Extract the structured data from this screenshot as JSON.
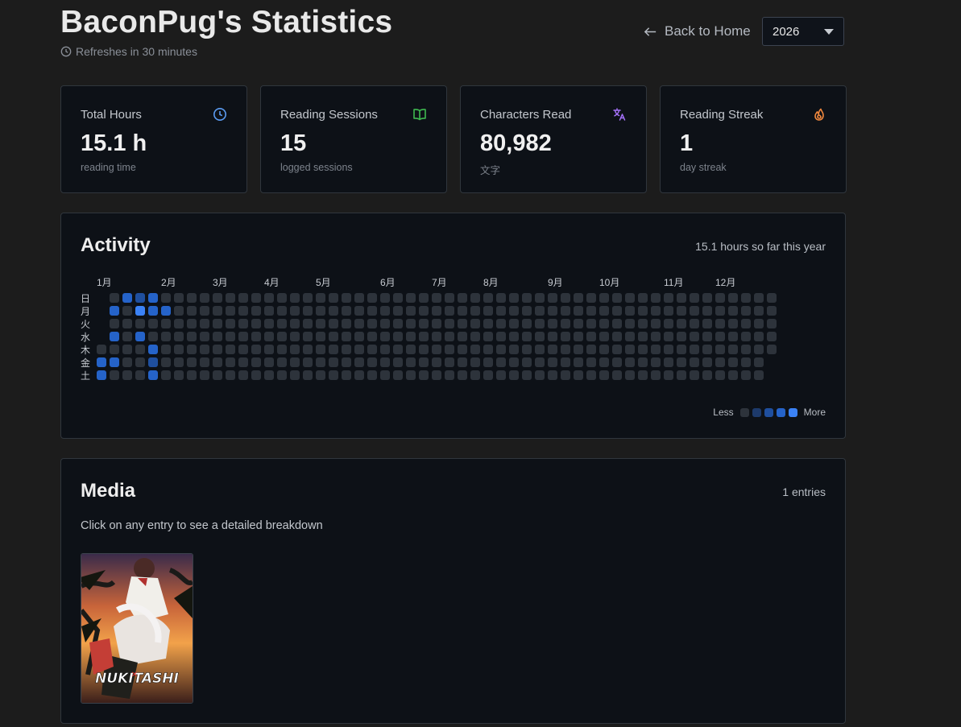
{
  "header": {
    "title": "BaconPug's Statistics",
    "refresh_text": "Refreshes in 30 minutes",
    "back_label": "Back to Home",
    "year_selected": "2026"
  },
  "stats": [
    {
      "label": "Total Hours",
      "value": "15.1 h",
      "sub": "reading time",
      "icon": "clock-icon",
      "color": "#5b9cf2"
    },
    {
      "label": "Reading Sessions",
      "value": "15",
      "sub": "logged sessions",
      "icon": "book-open-icon",
      "color": "#3fb950"
    },
    {
      "label": "Characters Read",
      "value": "80,982",
      "sub": "文字",
      "icon": "translate-icon",
      "color": "#a371f7"
    },
    {
      "label": "Reading Streak",
      "value": "1",
      "sub": "day streak",
      "icon": "flame-icon",
      "color": "#f0883e"
    }
  ],
  "activity": {
    "title": "Activity",
    "summary": "15.1 hours so far this year",
    "months": [
      "1月",
      "2月",
      "3月",
      "4月",
      "5月",
      "6月",
      "7月",
      "8月",
      "9月",
      "10月",
      "11月",
      "12月"
    ],
    "weekdays": [
      "日",
      "月",
      "火",
      "水",
      "木",
      "金",
      "土"
    ],
    "legend_less": "Less",
    "legend_more": "More",
    "level_colors": [
      "#2d333b",
      "#1d3a6b",
      "#1f4f9e",
      "#2563c9",
      "#3b82f6"
    ]
  },
  "media": {
    "title": "Media",
    "count_text": "1 entries",
    "hint": "Click on any entry to see a detailed breakdown",
    "items": [
      {
        "logo_text": "NUKITASHI"
      }
    ]
  }
}
